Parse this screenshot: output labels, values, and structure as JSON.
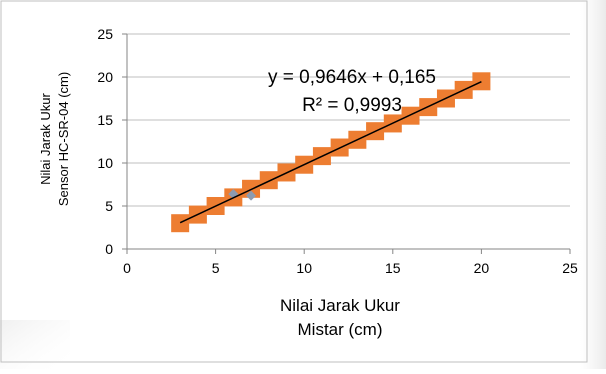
{
  "chart_data": {
    "type": "scatter",
    "title": "",
    "xlabel_lines": [
      "Nilai Jarak Ukur",
      "Mistar (cm)"
    ],
    "ylabel_lines": [
      "Nilai Jarak Ukur",
      "Sensor HC-SR-04 (cm)"
    ],
    "xlim": [
      0,
      25
    ],
    "ylim": [
      0,
      25
    ],
    "xticks": [
      "0",
      "5",
      "10",
      "15",
      "20",
      "25"
    ],
    "yticks": [
      "0",
      "5",
      "10",
      "15",
      "20",
      "25"
    ],
    "grid": "horizontal",
    "legend": "none",
    "series": [
      {
        "marker": "square",
        "color": "#ED7D31",
        "x": [
          3,
          4,
          5,
          6,
          7,
          8,
          9,
          10,
          11,
          12,
          13,
          14,
          15,
          16,
          17,
          18,
          19,
          20
        ],
        "y": [
          3.0,
          4.0,
          5.0,
          6.0,
          7.0,
          8.0,
          8.9,
          9.8,
          10.8,
          11.8,
          12.7,
          13.7,
          14.6,
          15.5,
          16.5,
          17.5,
          18.5,
          19.5
        ]
      },
      {
        "marker": "diamond",
        "color": "#8C9BB0",
        "x": [
          6,
          7
        ],
        "y": [
          6.4,
          6.2
        ]
      }
    ],
    "trendline": {
      "color": "#000000",
      "slope": 0.9646,
      "intercept": 0.165,
      "x_range": [
        3,
        20
      ],
      "equation": "y = 0,9646x + 0,165",
      "r_squared": "R² = 0,9993"
    }
  }
}
